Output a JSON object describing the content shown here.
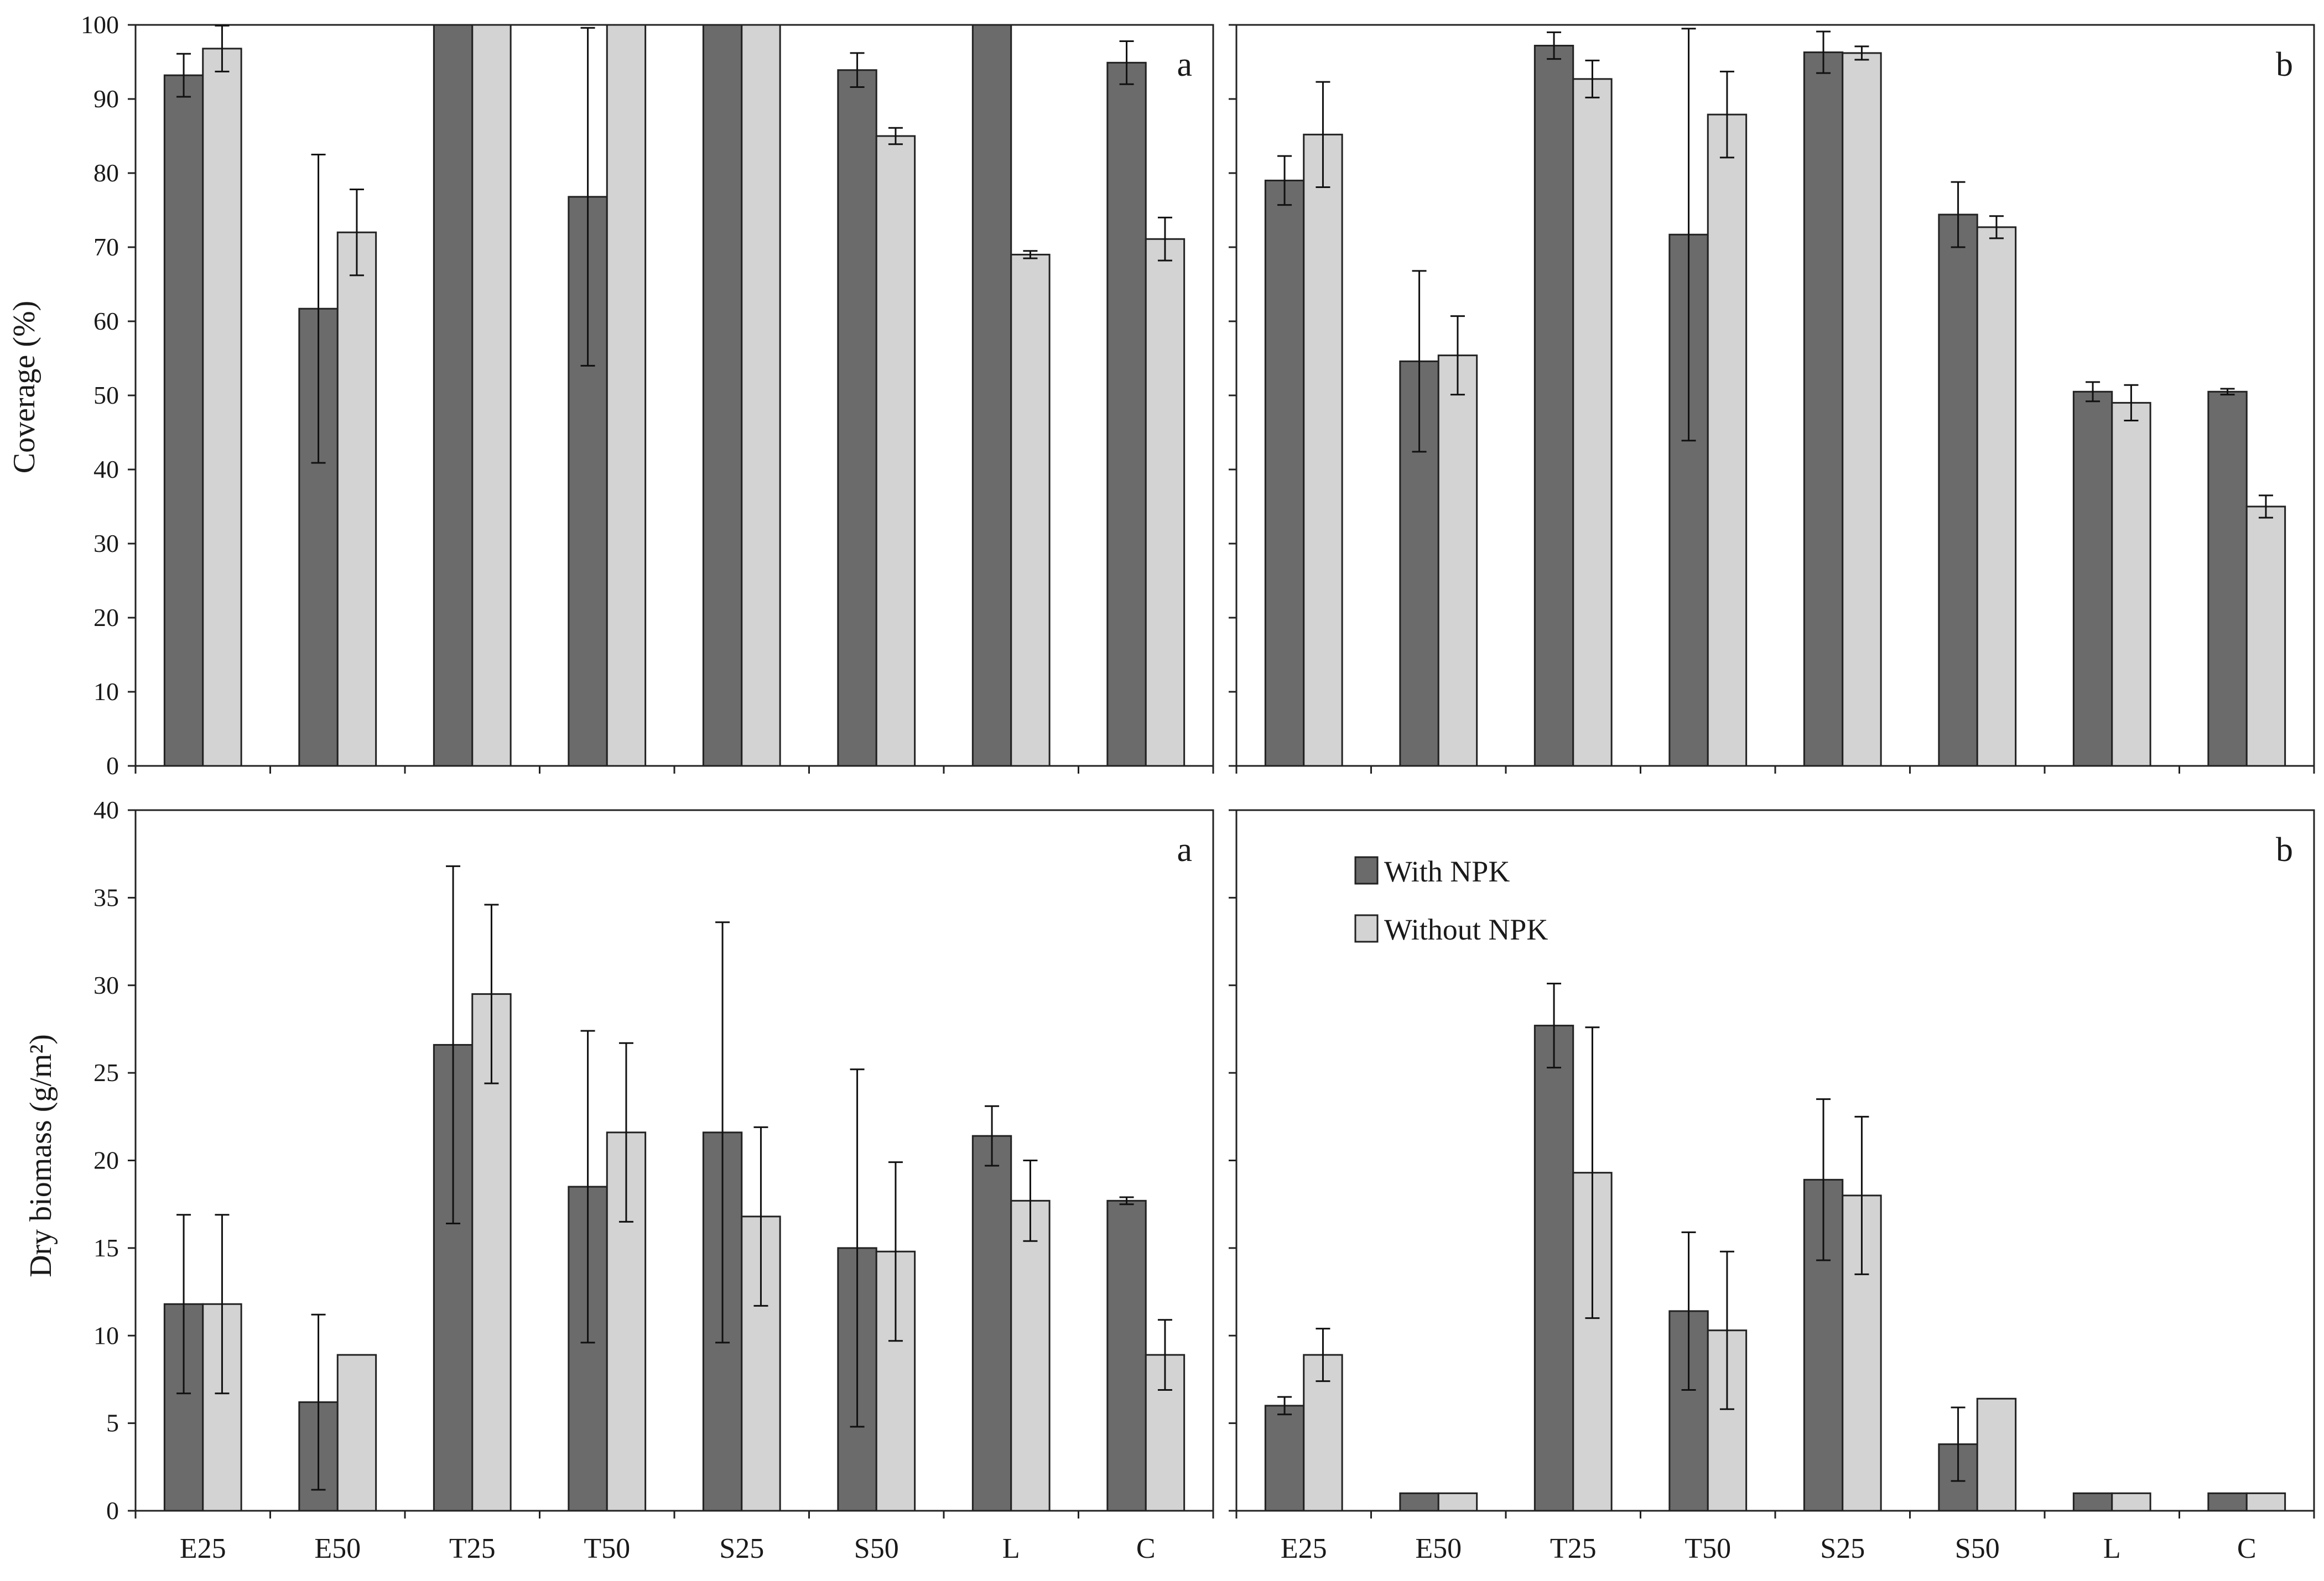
{
  "legend": {
    "with_npk": "With NPK",
    "without_npk": "Without NPK"
  },
  "colors": {
    "with_npk": "#6b6b6b",
    "without_npk": "#d3d3d3",
    "axis": "#222222"
  },
  "chart_data": [
    {
      "type": "bar",
      "panel": "a",
      "row": "coverage",
      "ylabel": "Coverage (%)",
      "ylim": [
        0,
        100
      ],
      "ticks": [
        0,
        10,
        20,
        30,
        40,
        50,
        60,
        70,
        80,
        90,
        100
      ],
      "show_tick_labels": true,
      "show_category_labels": false,
      "categories": [
        "E25",
        "E50",
        "T25",
        "T50",
        "S25",
        "S50",
        "L",
        "C"
      ],
      "series": [
        {
          "name": "With NPK",
          "values": [
            93.2,
            61.7,
            100,
            76.8,
            100,
            93.9,
            100,
            94.9
          ],
          "errors": [
            2.9,
            20.8,
            0,
            22.8,
            0,
            2.3,
            0,
            2.9
          ]
        },
        {
          "name": "Without NPK",
          "values": [
            96.8,
            72.0,
            100,
            100,
            100,
            85.0,
            69.0,
            71.1
          ],
          "errors": [
            3.1,
            5.8,
            0,
            0,
            0,
            1.1,
            0.5,
            2.9
          ]
        }
      ]
    },
    {
      "type": "bar",
      "panel": "b",
      "row": "coverage",
      "ylabel": "",
      "ylim": [
        0,
        100
      ],
      "ticks": [
        0,
        10,
        20,
        30,
        40,
        50,
        60,
        70,
        80,
        90,
        100
      ],
      "show_tick_labels": false,
      "show_category_labels": false,
      "categories": [
        "E25",
        "E50",
        "T25",
        "T50",
        "S25",
        "S50",
        "L",
        "C"
      ],
      "series": [
        {
          "name": "With NPK",
          "values": [
            79.0,
            54.6,
            97.2,
            71.7,
            96.3,
            74.4,
            50.5,
            50.5
          ],
          "errors": [
            3.3,
            12.2,
            1.8,
            27.8,
            2.8,
            4.4,
            1.3,
            0.4
          ]
        },
        {
          "name": "Without NPK",
          "values": [
            85.2,
            55.4,
            92.7,
            87.9,
            96.2,
            72.7,
            49.0,
            35.0
          ],
          "errors": [
            7.1,
            5.3,
            2.5,
            5.8,
            0.9,
            1.5,
            2.4,
            1.5
          ]
        }
      ]
    },
    {
      "type": "bar",
      "panel": "a",
      "row": "biomass",
      "ylabel": "Dry biomass (g/m²)",
      "ylim": [
        0,
        40
      ],
      "ticks": [
        0,
        5,
        10,
        15,
        20,
        25,
        30,
        35,
        40
      ],
      "show_tick_labels": true,
      "show_category_labels": true,
      "categories": [
        "E25",
        "E50",
        "T25",
        "T50",
        "S25",
        "S50",
        "L",
        "C"
      ],
      "series": [
        {
          "name": "With NPK",
          "values": [
            11.8,
            6.2,
            26.6,
            18.5,
            21.6,
            15.0,
            21.4,
            17.7
          ],
          "errors": [
            5.1,
            5.0,
            10.2,
            8.9,
            12.0,
            10.2,
            1.7,
            0.2
          ]
        },
        {
          "name": "Without NPK",
          "values": [
            11.8,
            8.9,
            29.5,
            21.6,
            16.8,
            14.8,
            17.7,
            8.9
          ],
          "errors": [
            5.1,
            0,
            5.1,
            5.1,
            5.1,
            5.1,
            2.3,
            2.0
          ]
        }
      ]
    },
    {
      "type": "bar",
      "panel": "b",
      "row": "biomass",
      "ylabel": "",
      "ylim": [
        0,
        40
      ],
      "ticks": [
        0,
        5,
        10,
        15,
        20,
        25,
        30,
        35,
        40
      ],
      "show_tick_labels": false,
      "show_category_labels": true,
      "categories": [
        "E25",
        "E50",
        "T25",
        "T50",
        "S25",
        "S50",
        "L",
        "C"
      ],
      "series": [
        {
          "name": "With NPK",
          "values": [
            6.0,
            1.0,
            27.7,
            11.4,
            18.9,
            3.8,
            1.0,
            1.0
          ],
          "errors": [
            0.5,
            0,
            2.4,
            4.5,
            4.6,
            2.1,
            0,
            0
          ]
        },
        {
          "name": "Without NPK",
          "values": [
            8.9,
            1.0,
            19.3,
            10.3,
            18.0,
            6.4,
            1.0,
            1.0
          ],
          "errors": [
            1.5,
            0,
            8.3,
            4.5,
            4.5,
            0,
            0,
            0
          ]
        }
      ]
    }
  ]
}
